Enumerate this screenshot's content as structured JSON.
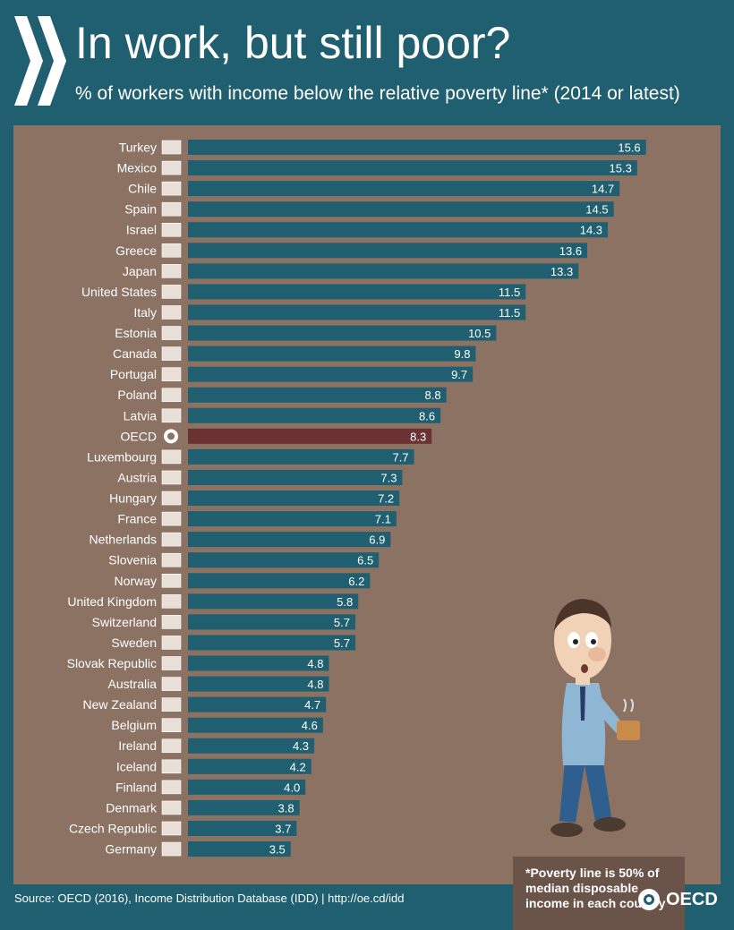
{
  "header": {
    "title": "In work, but still poor?",
    "subtitle": "% of workers with income below the relative poverty line* (2014 or latest)"
  },
  "note": {
    "text": "*Poverty line is 50% of median disposable income in each country"
  },
  "footer": {
    "source": "Source: OECD (2016), Income Distribution Database (IDD)  |  http://oe.cd/idd",
    "logo_text": "OECD"
  },
  "colors": {
    "background": "#1f5f6f",
    "panel": "#8b7263",
    "bar": "#1f5f6f",
    "bar_highlight": "#6b3233",
    "note_box": "#6a5449"
  },
  "chart_data": {
    "type": "bar",
    "orientation": "horizontal",
    "title": "In work, but still poor?",
    "subtitle": "% of workers with income below the relative poverty line* (2014 or latest)",
    "categories": [
      "Turkey",
      "Mexico",
      "Chile",
      "Spain",
      "Israel",
      "Greece",
      "Japan",
      "United States",
      "Italy",
      "Estonia",
      "Canada",
      "Portugal",
      "Poland",
      "Latvia",
      "OECD",
      "Luxembourg",
      "Austria",
      "Hungary",
      "France",
      "Netherlands",
      "Slovenia",
      "Norway",
      "United Kingdom",
      "Switzerland",
      "Sweden",
      "Slovak Republic",
      "Australia",
      "New Zealand",
      "Belgium",
      "Ireland",
      "Iceland",
      "Finland",
      "Denmark",
      "Czech Republic",
      "Germany"
    ],
    "values": [
      15.6,
      15.3,
      14.7,
      14.5,
      14.3,
      13.6,
      13.3,
      11.5,
      11.5,
      10.5,
      9.8,
      9.7,
      8.8,
      8.6,
      8.3,
      7.7,
      7.3,
      7.2,
      7.1,
      6.9,
      6.5,
      6.2,
      5.8,
      5.7,
      5.7,
      4.8,
      4.8,
      4.7,
      4.6,
      4.3,
      4.2,
      4.0,
      3.8,
      3.7,
      3.5
    ],
    "value_labels": [
      "15.6",
      "15.3",
      "14.7",
      "14.5",
      "14.3",
      "13.6",
      "13.3",
      "11.5",
      "11.5",
      "10.5",
      "9.8",
      "9.7",
      "8.8",
      "8.6",
      "8.3",
      "7.7",
      "7.3",
      "7.2",
      "7.1",
      "6.9",
      "6.5",
      "6.2",
      "5.8",
      "5.7",
      "5.7",
      "4.8",
      "4.8",
      "4.7",
      "4.6",
      "4.3",
      "4.2",
      "4.0",
      "3.8",
      "3.7",
      "3.5"
    ],
    "highlight": "OECD",
    "xlim": [
      0,
      16
    ],
    "grid": false,
    "legend": "none"
  }
}
